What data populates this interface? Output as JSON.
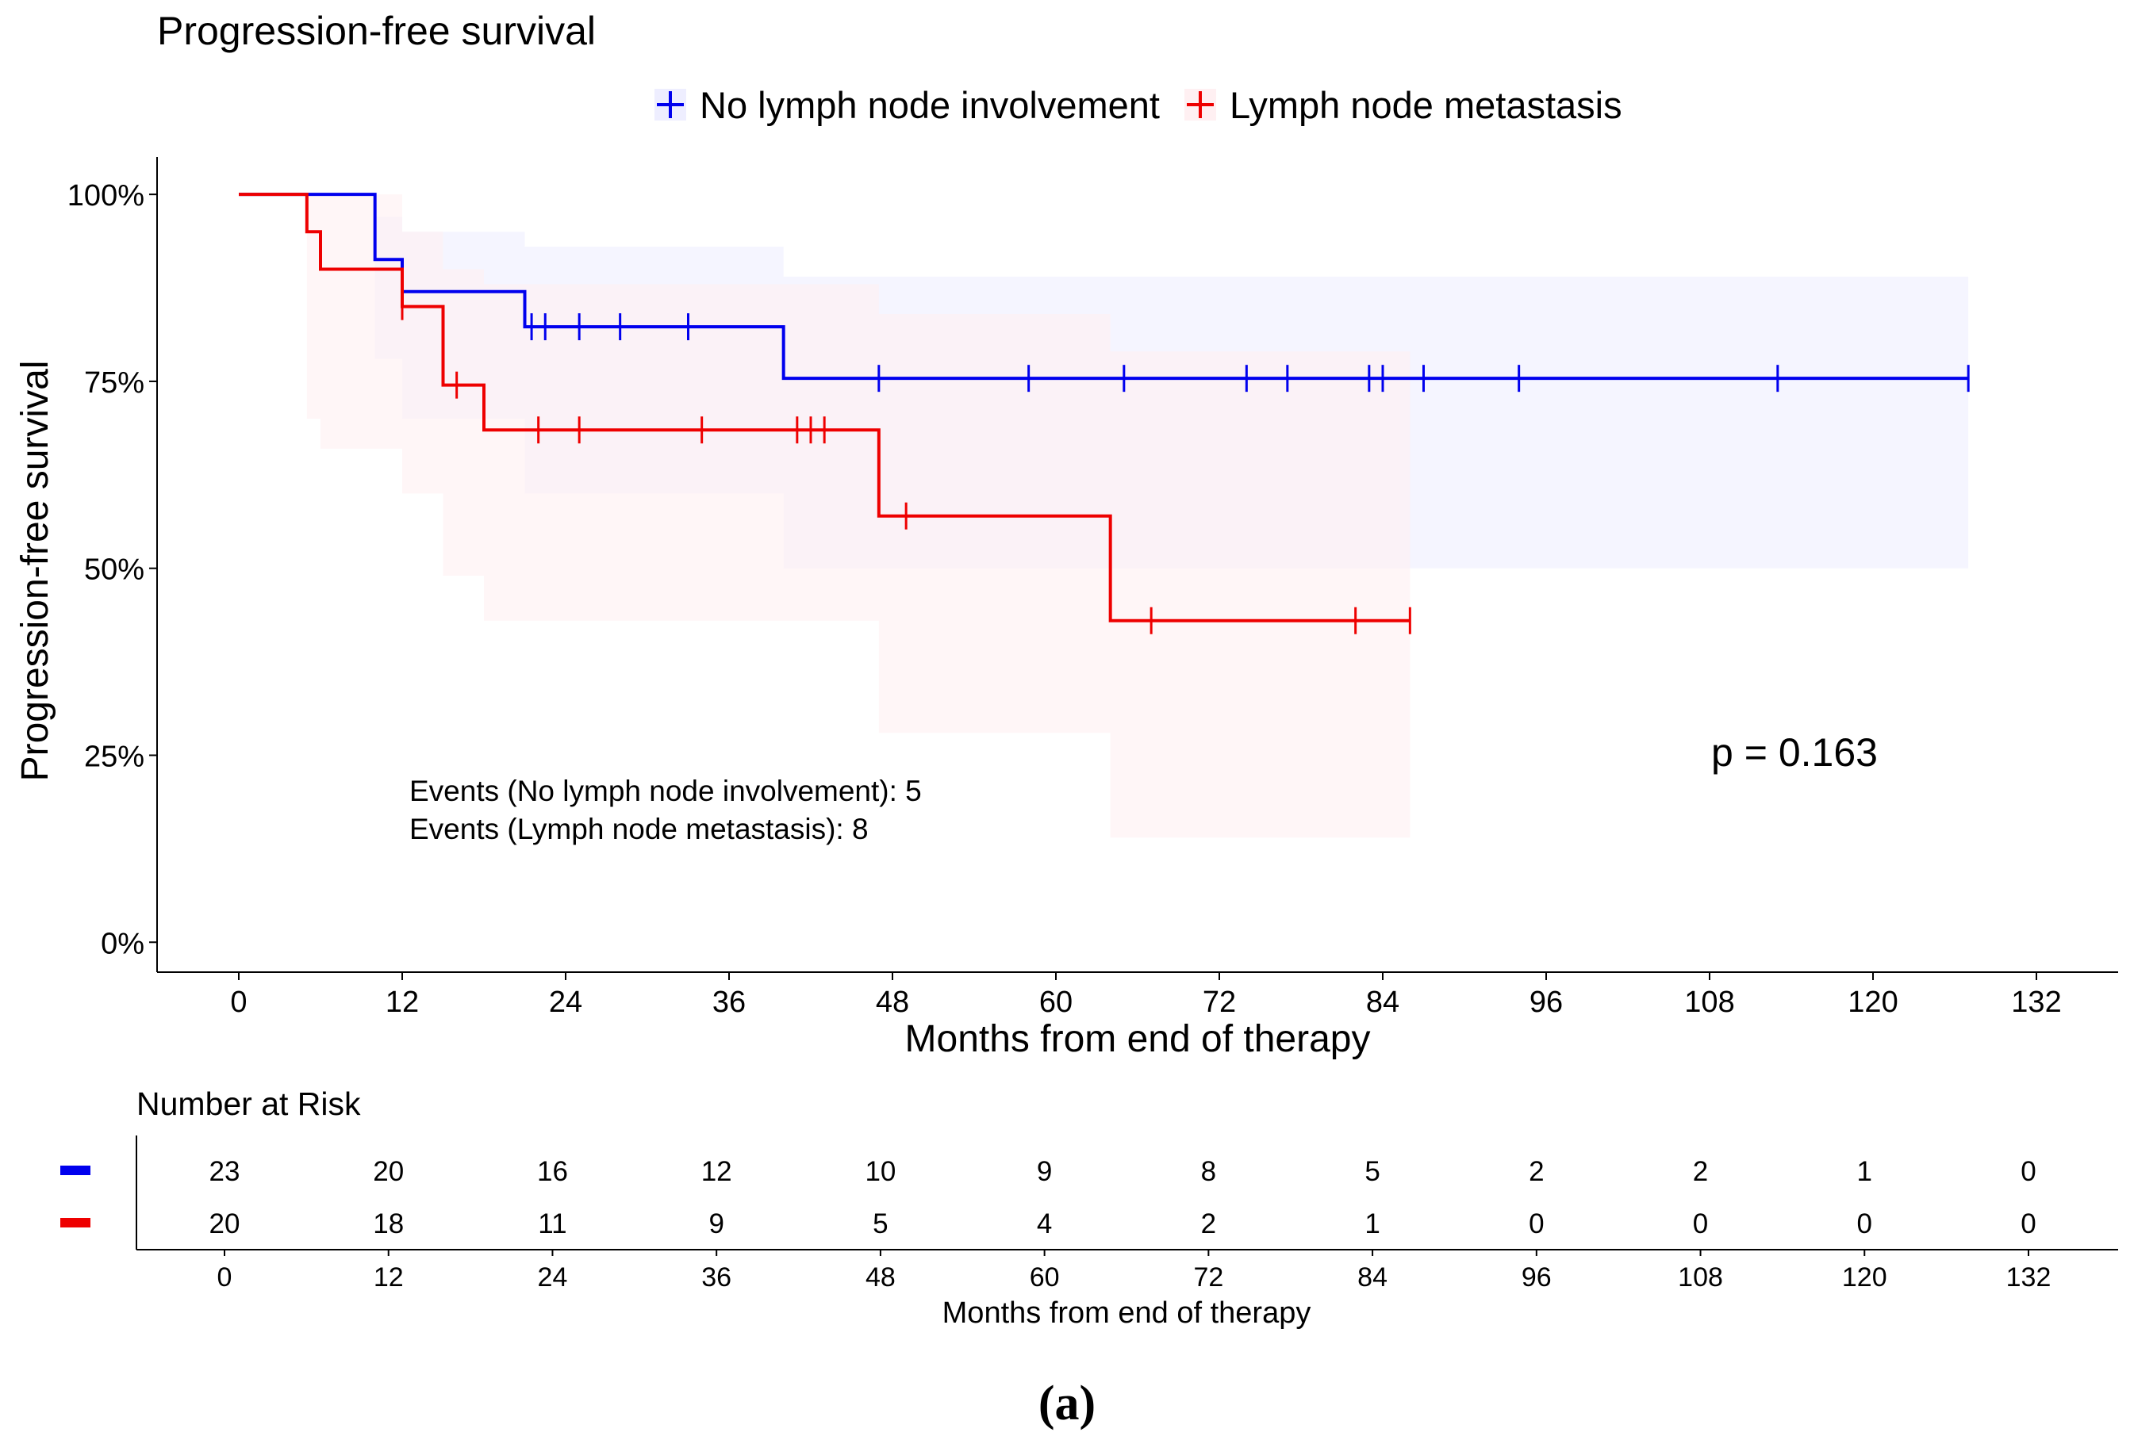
{
  "chart_data": {
    "type": "step",
    "title": "Progression-free survival",
    "xlabel": "Months from end of therapy",
    "ylabel": "Progression-free survival",
    "xlim": [
      -6,
      138
    ],
    "xticks": [
      0,
      12,
      24,
      36,
      48,
      60,
      72,
      84,
      96,
      108,
      120,
      132
    ],
    "ylim": [
      -0.04,
      1.05
    ],
    "yticks": [
      0,
      0.25,
      0.5,
      0.75,
      1.0
    ],
    "ytick_labels": [
      "0%",
      "25%",
      "50%",
      "75%",
      "100%"
    ],
    "legend_position": "top",
    "series": [
      {
        "name": "No lymph node involvement",
        "color": "#0000ee",
        "band_color": "#eeeeff",
        "steps": [
          [
            0,
            1.0
          ],
          [
            10,
            0.913
          ],
          [
            12,
            0.87
          ],
          [
            21,
            0.823
          ],
          [
            40,
            0.754
          ],
          [
            127,
            0.754
          ]
        ],
        "ci_steps": [
          [
            10,
            0.97,
            0.78
          ],
          [
            12,
            0.95,
            0.7
          ],
          [
            21,
            0.93,
            0.6
          ],
          [
            40,
            0.89,
            0.5
          ],
          [
            127,
            0.89,
            0.5
          ]
        ],
        "censor_times": [
          21.5,
          22.5,
          25,
          28,
          33,
          47,
          58,
          65,
          74,
          77,
          83,
          84,
          87,
          94,
          113,
          127
        ]
      },
      {
        "name": "Lymph node metastasis",
        "color": "#ee0000",
        "band_color": "#fff0f2",
        "steps": [
          [
            0,
            1.0
          ],
          [
            5,
            0.95
          ],
          [
            6,
            0.9
          ],
          [
            12,
            0.85
          ],
          [
            15,
            0.745
          ],
          [
            18,
            0.685
          ],
          [
            47,
            0.57
          ],
          [
            64,
            0.43
          ],
          [
            86,
            0.43
          ]
        ],
        "ci_steps": [
          [
            5,
            1.0,
            0.7
          ],
          [
            6,
            1.0,
            0.66
          ],
          [
            12,
            0.95,
            0.6
          ],
          [
            15,
            0.9,
            0.49
          ],
          [
            18,
            0.88,
            0.43
          ],
          [
            47,
            0.84,
            0.28
          ],
          [
            64,
            0.79,
            0.14
          ],
          [
            86,
            0.7,
            0.14
          ]
        ],
        "censor_times": [
          12,
          16,
          22,
          25,
          34,
          41,
          42,
          43,
          49,
          67,
          82,
          86
        ]
      }
    ],
    "annotations": {
      "events_line1": "Events (No lymph node involvement): 5",
      "events_line2": "Events (Lymph node metastasis): 8",
      "pvalue": "p = 0.163"
    },
    "risk_table": {
      "title": "Number at Risk",
      "xlabel": "Months from end of therapy",
      "times": [
        0,
        12,
        24,
        36,
        48,
        60,
        72,
        84,
        96,
        108,
        120,
        132
      ],
      "rows": [
        {
          "color": "#0000ee",
          "values": [
            23,
            20,
            16,
            12,
            10,
            9,
            8,
            5,
            2,
            2,
            1,
            0
          ]
        },
        {
          "color": "#ee0000",
          "values": [
            20,
            18,
            11,
            9,
            5,
            4,
            2,
            1,
            0,
            0,
            0,
            0
          ]
        }
      ]
    }
  },
  "caption": "(a)"
}
